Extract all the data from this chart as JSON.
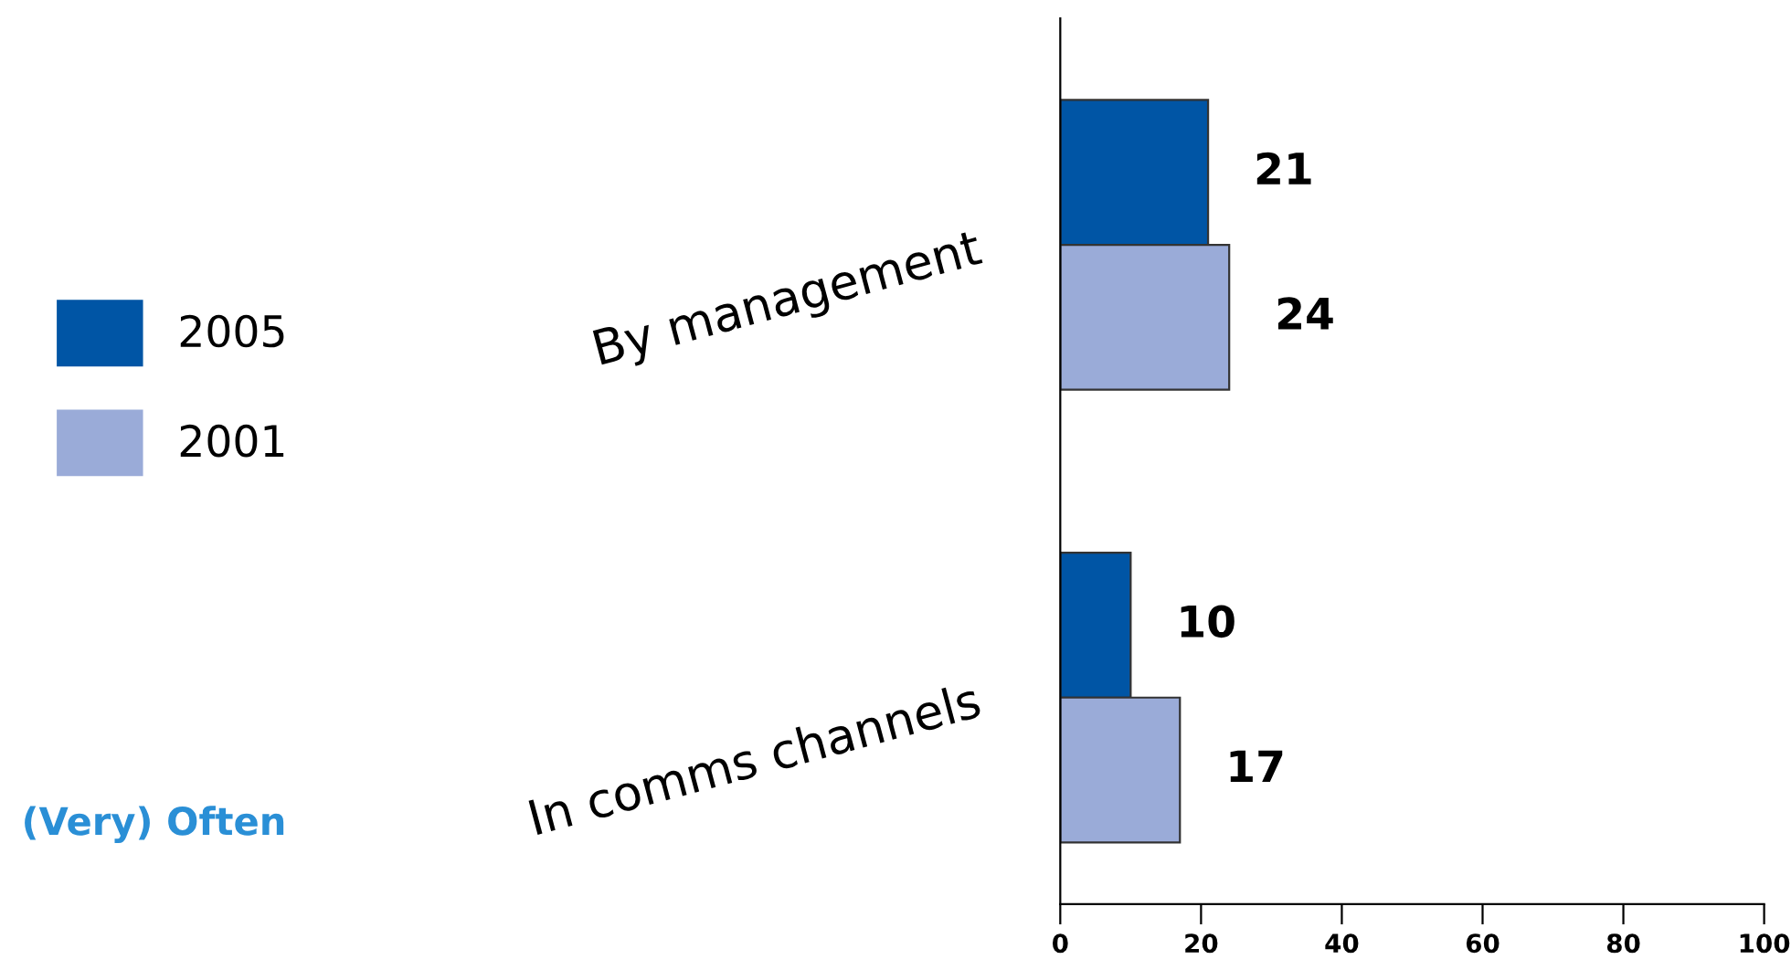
{
  "chart_data": {
    "type": "bar",
    "orientation": "horizontal",
    "categories": [
      "By management",
      "In comms channels"
    ],
    "series": [
      {
        "name": "2005",
        "color": "#0055a5",
        "values": [
          21,
          10
        ]
      },
      {
        "name": "2001",
        "color": "#9aabd8",
        "values": [
          24,
          17
        ]
      }
    ],
    "xlim": [
      0,
      100
    ],
    "xticks": [
      0,
      20,
      40,
      60,
      80,
      100
    ],
    "data_labels": true,
    "legend": "left",
    "grid": false,
    "annotations": [
      "(Very) Often"
    ]
  }
}
